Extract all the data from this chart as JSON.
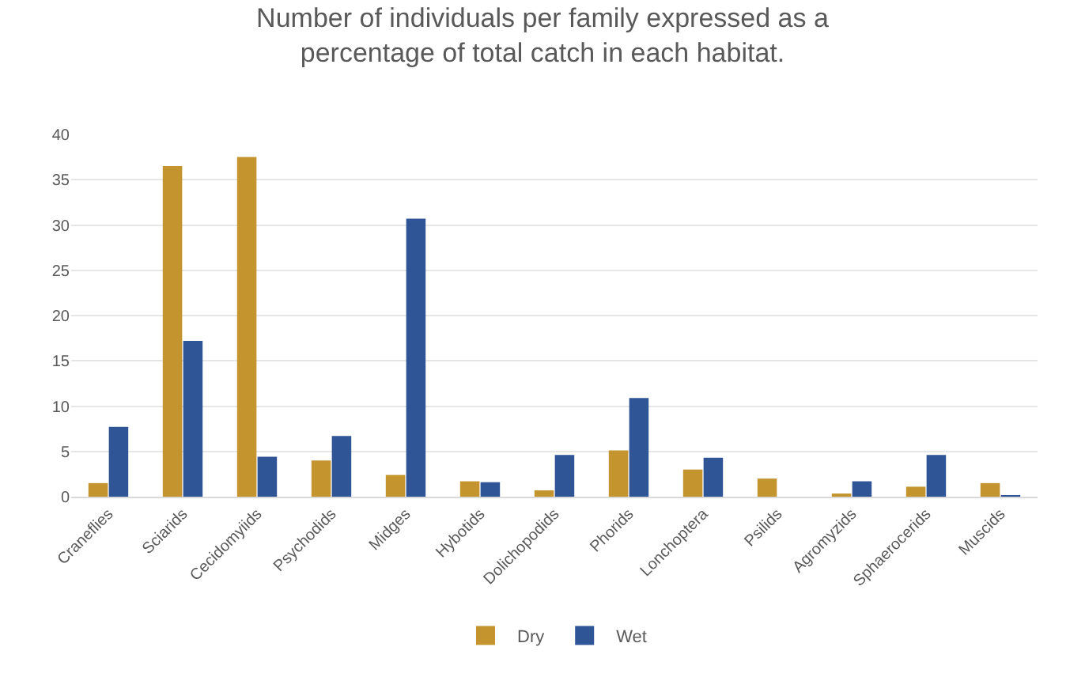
{
  "chart_data": {
    "type": "bar",
    "title": "Number of individuals per family expressed as a\npercentage of total catch in each habitat.",
    "categories": [
      "Craneflies",
      "Sciarids",
      "Cecidomyiids",
      "Psychodids",
      "Midges",
      "Hybotids",
      "Dolichopodids",
      "Phorids",
      "Lonchoptera",
      "Psilids",
      "Agromyzids",
      "Sphaerocerids",
      "Muscids"
    ],
    "series": [
      {
        "name": "Dry",
        "color": "#c4952f",
        "values": [
          1.5,
          36.5,
          37.5,
          4.0,
          2.4,
          1.7,
          0.7,
          5.1,
          3.0,
          2.0,
          0.2,
          1.1,
          1.5
        ]
      },
      {
        "name": "Wet",
        "color": "#2f5597",
        "values": [
          7.7,
          17.2,
          4.4,
          6.7,
          30.7,
          1.6,
          4.6,
          10.9,
          4.3,
          0,
          1.7,
          4.6,
          0.1
        ]
      }
    ],
    "ylim": [
      0,
      40
    ],
    "yticks": [
      0,
      5,
      10,
      15,
      20,
      25,
      30,
      35,
      40
    ],
    "grid": "y",
    "legend": "bottom"
  }
}
